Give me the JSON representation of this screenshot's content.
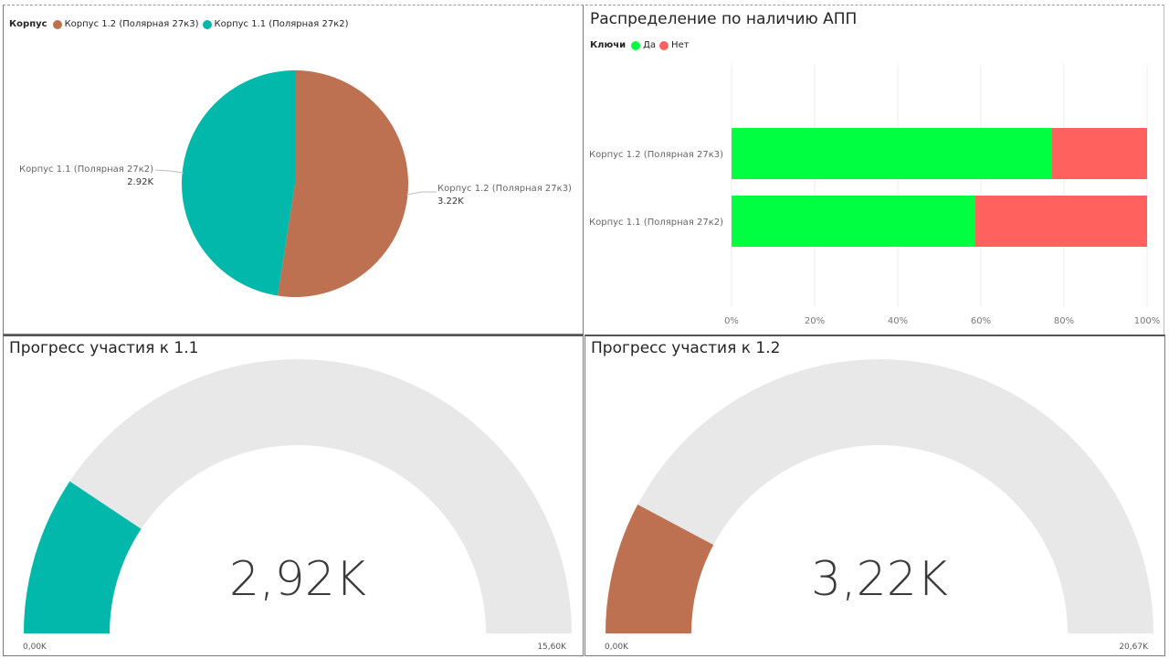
{
  "colors": {
    "korpus_1_2": "#BD7150",
    "korpus_1_1": "#01B8AA",
    "yes": "#00FF40",
    "no": "#FF625E",
    "gauge_track": "#E8E8E8"
  },
  "chart_data": [
    {
      "type": "pie",
      "title": "",
      "legend": {
        "title": "Корпус",
        "position": "top-left",
        "entries": [
          "Корпус 1.2 (Полярная 27к3)",
          "Корпус 1.1 (Полярная 27к2)"
        ]
      },
      "categories": [
        "Корпус 1.2 (Полярная 27к3)",
        "Корпус 1.1 (Полярная 27к2)"
      ],
      "values": [
        3220,
        2920
      ],
      "value_labels": [
        "3.22K",
        "2.92K"
      ]
    },
    {
      "type": "bar",
      "orientation": "horizontal",
      "stacked": "100%",
      "title": "Распределение по наличию АПП",
      "legend": {
        "title": "Ключи",
        "position": "top-left",
        "entries": [
          "Да",
          "Нет"
        ]
      },
      "categories": [
        "Корпус 1.2 (Полярная 27к3)",
        "Корпус 1.1 (Полярная 27к2)"
      ],
      "series": [
        {
          "name": "Да",
          "values": [
            77,
            58.5
          ]
        },
        {
          "name": "Нет",
          "values": [
            23,
            41.5
          ]
        }
      ],
      "xlim": [
        0,
        100
      ],
      "xticks": [
        "0%",
        "20%",
        "40%",
        "60%",
        "80%",
        "100%"
      ],
      "grid": true
    },
    {
      "type": "gauge",
      "title": "Прогресс участия к 1.1",
      "value": 2920,
      "value_label": "2,92K",
      "min": 0,
      "max": 15600,
      "min_label": "0,00K",
      "max_label": "15,60K"
    },
    {
      "type": "gauge",
      "title": "Прогресс участия к 1.2",
      "value": 3220,
      "value_label": "3,22K",
      "min": 0,
      "max": 20670,
      "min_label": "0,00K",
      "max_label": "20,67K"
    }
  ]
}
